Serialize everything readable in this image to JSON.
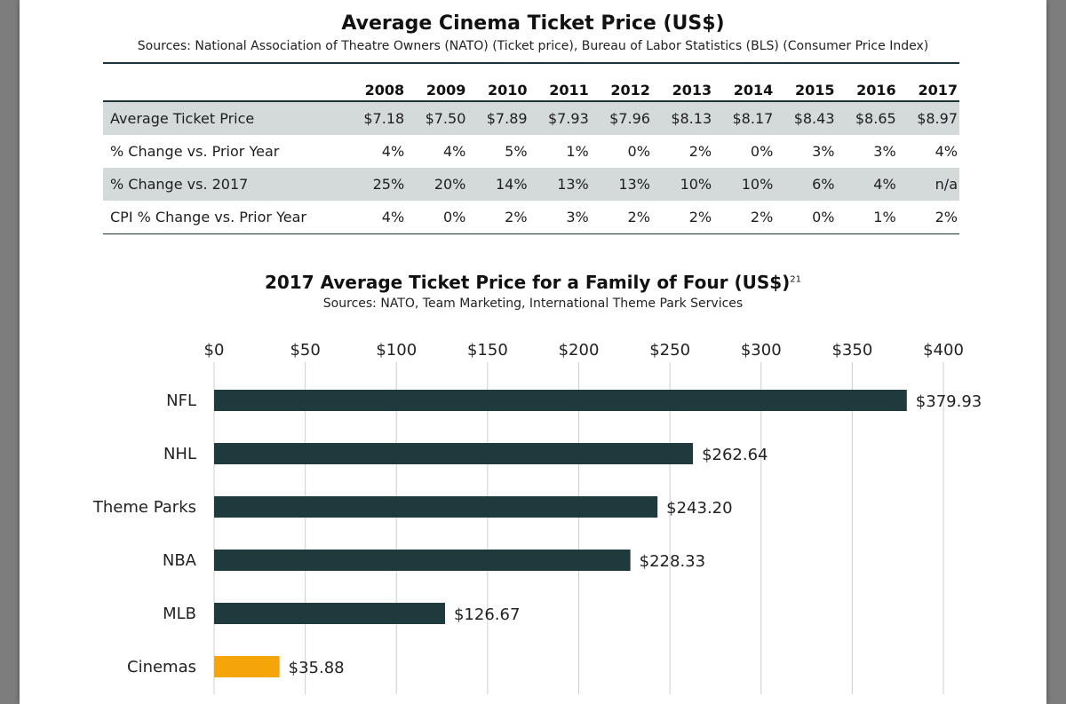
{
  "table": {
    "title": "Average Cinema Ticket Price (US$)",
    "sources": "Sources: National Association of Theatre Owners (NATO) (Ticket price), Bureau of Labor Statistics (BLS) (Consumer Price Index)",
    "years": [
      "2008",
      "2009",
      "2010",
      "2011",
      "2012",
      "2013",
      "2014",
      "2015",
      "2016",
      "2017"
    ],
    "rows": [
      {
        "label": "Average Ticket Price",
        "values": [
          "$7.18",
          "$7.50",
          "$7.89",
          "$7.93",
          "$7.96",
          "$8.13",
          "$8.17",
          "$8.43",
          "$8.65",
          "$8.97"
        ]
      },
      {
        "label": "% Change vs. Prior Year",
        "values": [
          "4%",
          "4%",
          "5%",
          "1%",
          "0%",
          "2%",
          "0%",
          "3%",
          "3%",
          "4%"
        ]
      },
      {
        "label": "% Change vs. 2017",
        "values": [
          "25%",
          "20%",
          "14%",
          "13%",
          "13%",
          "10%",
          "10%",
          "6%",
          "4%",
          "n/a"
        ]
      },
      {
        "label": "CPI % Change vs. Prior Year",
        "values": [
          "4%",
          "0%",
          "2%",
          "3%",
          "2%",
          "2%",
          "2%",
          "0%",
          "1%",
          "2%"
        ]
      }
    ],
    "shade_color": "#d4d9da"
  },
  "chart_data": {
    "type": "bar",
    "orientation": "horizontal",
    "title": "2017 Average Ticket Price for a Family of Four (US$)",
    "title_superscript": "21",
    "subtitle": "Sources: NATO, Team Marketing, International Theme Park Services",
    "categories": [
      "NFL",
      "NHL",
      "Theme Parks",
      "NBA",
      "MLB",
      "Cinemas"
    ],
    "values": [
      379.93,
      262.64,
      243.2,
      228.33,
      126.67,
      35.88
    ],
    "value_labels": [
      "$379.93",
      "$262.64",
      "$243.20",
      "$228.33",
      "$126.67",
      "$35.88"
    ],
    "xlim": [
      0,
      400
    ],
    "x_ticks": [
      0,
      50,
      100,
      150,
      200,
      250,
      300,
      350,
      400
    ],
    "x_tick_labels": [
      "$0",
      "$50",
      "$100",
      "$150",
      "$200",
      "$250",
      "$300",
      "$350",
      "$400"
    ],
    "x_axis_position": "top",
    "grid": true,
    "bar_color": "#1f3a3d",
    "highlight_category": "Cinemas",
    "highlight_color": "#f5a40a"
  }
}
